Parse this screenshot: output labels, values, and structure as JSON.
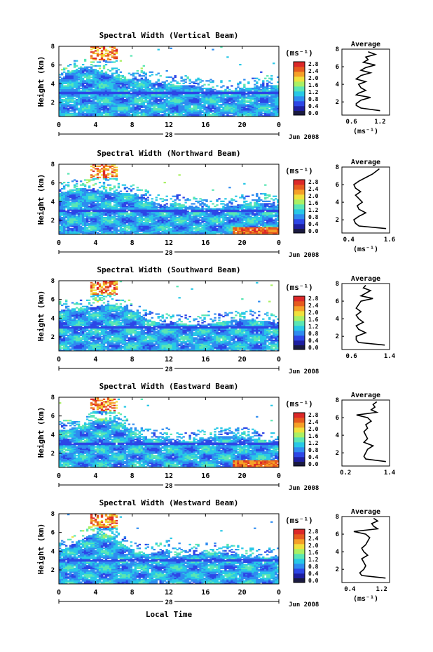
{
  "figure": {
    "x_axis_title": "Local Time",
    "y_axis_title": "Height (km)",
    "unit_label": "(ms⁻¹)",
    "avg_title": "Average",
    "day_label": "28",
    "month_label": "Jun 2008",
    "time_ticks": [
      "0",
      "4",
      "8",
      "12",
      "16",
      "20",
      "0"
    ],
    "height_ticks": [
      "2",
      "4",
      "6",
      "8"
    ],
    "colorbar_ticks": [
      "0.0",
      "0.4",
      "0.8",
      "1.2",
      "1.6",
      "2.0",
      "2.4",
      "2.8"
    ],
    "colors": {
      "missing": "#ffffff",
      "zero": "#1a1a40",
      "scale": [
        "#1e1ea0",
        "#2d46e6",
        "#2f8cf0",
        "#28c8e6",
        "#5ae6b4",
        "#aaf064",
        "#f0e13c",
        "#f5a028",
        "#e65a1e",
        "#dc2828"
      ]
    }
  },
  "chart_data": [
    {
      "type": "heatmap",
      "title": "Spectral Width (Vertical Beam)",
      "xlabel": "",
      "ylabel": "Height (km)",
      "xlim": [
        0,
        24
      ],
      "ylim": [
        0.5,
        8
      ],
      "zlim": [
        0,
        3.0
      ],
      "avg_profile": {
        "xlabel": "(ms⁻¹)",
        "xticks": [
          "0.6",
          "1.2"
        ],
        "xlim": [
          0.4,
          1.4
        ],
        "heights": [
          1.0,
          1.3,
          1.6,
          1.8,
          2.0,
          2.2,
          2.5,
          2.8,
          3.0,
          3.3,
          3.6,
          4.0,
          4.3,
          4.6,
          5.0,
          5.3,
          5.6,
          5.9,
          6.2,
          6.5,
          6.8,
          7.1,
          7.4,
          7.7
        ],
        "values": [
          1.2,
          0.8,
          0.7,
          0.7,
          0.75,
          0.8,
          1.0,
          0.7,
          0.75,
          0.9,
          0.8,
          0.75,
          0.9,
          0.7,
          0.8,
          1.0,
          0.8,
          0.9,
          1.1,
          0.85,
          0.95,
          0.9,
          1.1,
          0.95
        ]
      }
    },
    {
      "type": "heatmap",
      "title": "Spectral Width (Northward Beam)",
      "xlabel": "",
      "ylabel": "Height (km)",
      "xlim": [
        0,
        24
      ],
      "ylim": [
        0.5,
        8
      ],
      "zlim": [
        0,
        3.0
      ],
      "avg_profile": {
        "xlabel": "(ms⁻¹)",
        "xticks": [
          "0.4",
          "1.6"
        ],
        "xlim": [
          0.2,
          1.6
        ],
        "heights": [
          1.0,
          1.3,
          1.6,
          2.0,
          2.4,
          2.8,
          3.2,
          3.6,
          4.0,
          4.4,
          4.8,
          5.2,
          5.6,
          6.0,
          6.4,
          6.8,
          7.2,
          7.5,
          7.8
        ],
        "values": [
          1.5,
          0.7,
          0.6,
          0.55,
          0.7,
          0.9,
          0.7,
          0.65,
          0.8,
          0.7,
          0.6,
          0.75,
          0.6,
          0.55,
          0.7,
          0.9,
          1.1,
          1.2,
          1.3
        ]
      }
    },
    {
      "type": "heatmap",
      "title": "Spectral Width (Southward Beam)",
      "xlabel": "",
      "ylabel": "Height (km)",
      "xlim": [
        0,
        24
      ],
      "ylim": [
        0.5,
        8
      ],
      "zlim": [
        0,
        3.0
      ],
      "avg_profile": {
        "xlabel": "",
        "xticks": [
          "0.6",
          "1.4"
        ],
        "xlim": [
          0.4,
          1.4
        ],
        "heights": [
          1.0,
          1.3,
          1.6,
          2.0,
          2.4,
          2.8,
          3.2,
          3.6,
          4.0,
          4.4,
          4.8,
          5.2,
          5.6,
          6.0,
          6.3,
          6.6,
          6.9,
          7.2,
          7.5,
          7.8
        ],
        "values": [
          1.3,
          0.75,
          0.7,
          0.7,
          0.9,
          0.75,
          0.7,
          0.85,
          0.75,
          0.7,
          0.8,
          0.7,
          0.75,
          0.8,
          1.05,
          0.8,
          0.9,
          1.0,
          0.85,
          0.9
        ]
      }
    },
    {
      "type": "heatmap",
      "title": "Spectral Width (Eastward Beam)",
      "xlabel": "",
      "ylabel": "Height (km)",
      "xlim": [
        0,
        24
      ],
      "ylim": [
        0.5,
        8
      ],
      "zlim": [
        0,
        3.0
      ],
      "avg_profile": {
        "xlabel": "",
        "xticks": [
          "0.2",
          "1.4"
        ],
        "xlim": [
          0.1,
          1.4
        ],
        "heights": [
          1.0,
          1.3,
          1.6,
          2.0,
          2.4,
          2.8,
          3.2,
          3.6,
          4.0,
          4.4,
          4.8,
          5.2,
          5.6,
          6.0,
          6.3,
          6.6,
          6.9,
          7.2,
          7.5,
          7.8
        ],
        "values": [
          1.3,
          0.75,
          0.7,
          0.75,
          0.8,
          0.95,
          0.7,
          0.8,
          0.75,
          0.7,
          0.8,
          0.75,
          0.9,
          0.8,
          0.5,
          1.05,
          0.9,
          1.0,
          0.95,
          1.05
        ]
      }
    },
    {
      "type": "heatmap",
      "title": "Spectral Width (Westward Beam)",
      "xlabel": "Local Time",
      "ylabel": "Height (km)",
      "xlim": [
        0,
        24
      ],
      "ylim": [
        0.5,
        8
      ],
      "zlim": [
        0,
        3.0
      ],
      "avg_profile": {
        "xlabel": "(ms⁻¹)",
        "xticks": [
          "0.4",
          "1.2"
        ],
        "xlim": [
          0.2,
          1.4
        ],
        "heights": [
          1.0,
          1.3,
          1.6,
          2.0,
          2.4,
          2.8,
          3.2,
          3.6,
          4.0,
          4.4,
          4.8,
          5.2,
          5.6,
          6.0,
          6.3,
          6.6,
          6.9,
          7.2,
          7.5,
          7.8
        ],
        "values": [
          1.3,
          0.7,
          0.65,
          0.75,
          0.8,
          0.75,
          0.7,
          0.85,
          0.75,
          0.7,
          0.8,
          0.85,
          0.9,
          0.8,
          0.5,
          1.1,
          1.0,
          0.95,
          1.1,
          1.0
        ]
      }
    }
  ]
}
